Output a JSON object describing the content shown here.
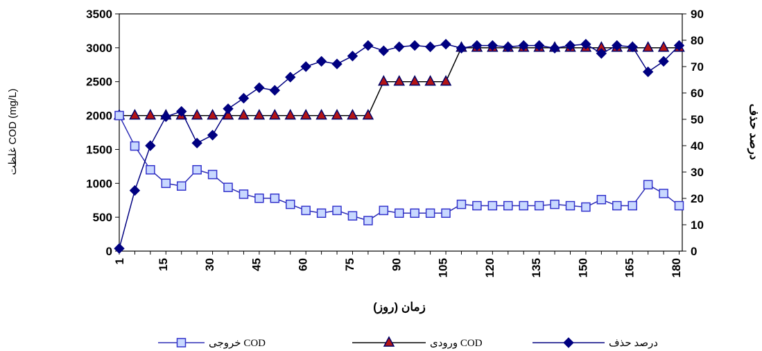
{
  "chart_data": {
    "type": "line",
    "title": "",
    "xlabel": "زمان (روز)",
    "ylabel": "غلظت COD (mg/L)",
    "y2label": "درصد حذف",
    "xlim": [
      1,
      182
    ],
    "ylim": [
      0,
      3500
    ],
    "y2lim": [
      0,
      90
    ],
    "x_ticks": [
      1,
      15,
      30,
      45,
      60,
      75,
      90,
      105,
      120,
      135,
      150,
      165,
      180
    ],
    "y_ticks": [
      0,
      500,
      1000,
      1500,
      2000,
      2500,
      3000,
      3500
    ],
    "y2_ticks": [
      0,
      10,
      20,
      30,
      40,
      50,
      60,
      70,
      80,
      90
    ],
    "grid": false,
    "legend_position": "bottom",
    "series": [
      {
        "name": "خروجی COD",
        "axis": "left",
        "color": "#2b2bb5",
        "marker": "square-open",
        "marker_color": "#3333cc",
        "marker_fill": "#c8d8ff",
        "x": [
          1,
          6,
          11,
          16,
          21,
          26,
          31,
          36,
          41,
          46,
          51,
          56,
          61,
          66,
          71,
          76,
          81,
          86,
          91,
          96,
          101,
          106,
          111,
          116,
          121,
          126,
          131,
          136,
          141,
          146,
          151,
          156,
          161,
          166,
          171,
          176,
          181
        ],
        "values": [
          2000,
          1550,
          1200,
          1000,
          960,
          1200,
          1130,
          940,
          840,
          780,
          780,
          690,
          600,
          560,
          600,
          520,
          450,
          600,
          560,
          560,
          560,
          560,
          690,
          670,
          670,
          670,
          670,
          670,
          690,
          670,
          650,
          760,
          670,
          670,
          980,
          850,
          670
        ]
      },
      {
        "name": "ورودی COD",
        "axis": "left",
        "color": "#000000",
        "marker": "triangle",
        "marker_color": "#000066",
        "marker_fill": "#b31515",
        "x": [
          1,
          6,
          11,
          16,
          21,
          26,
          31,
          36,
          41,
          46,
          51,
          56,
          61,
          66,
          71,
          76,
          81,
          86,
          91,
          96,
          101,
          106,
          111,
          116,
          121,
          126,
          131,
          136,
          141,
          146,
          151,
          156,
          161,
          166,
          171,
          176,
          181
        ],
        "values": [
          2000,
          2000,
          2000,
          2000,
          2000,
          2000,
          2000,
          2000,
          2000,
          2000,
          2000,
          2000,
          2000,
          2000,
          2000,
          2000,
          2000,
          2500,
          2500,
          2500,
          2500,
          2500,
          3000,
          3000,
          3000,
          3000,
          3000,
          3000,
          3000,
          3000,
          3000,
          3000,
          3000,
          3000,
          3000,
          3000,
          3000
        ]
      },
      {
        "name": "درصد حذف",
        "axis": "right",
        "color": "#000080",
        "marker": "diamond",
        "marker_color": "#000080",
        "marker_fill": "#000080",
        "x": [
          1,
          6,
          11,
          16,
          21,
          26,
          31,
          36,
          41,
          46,
          51,
          56,
          61,
          66,
          71,
          76,
          81,
          86,
          91,
          96,
          101,
          106,
          111,
          116,
          121,
          126,
          131,
          136,
          141,
          146,
          151,
          156,
          161,
          166,
          171,
          176,
          181
        ],
        "values": [
          1,
          23,
          40,
          51,
          53,
          41,
          44,
          54,
          58,
          62,
          61,
          66,
          70,
          72,
          71,
          74,
          78,
          76,
          77.5,
          78,
          77.5,
          78.5,
          77,
          78,
          78,
          77.5,
          78,
          78,
          77,
          78,
          78.5,
          75,
          78,
          77.5,
          68,
          72,
          78
        ]
      }
    ]
  }
}
